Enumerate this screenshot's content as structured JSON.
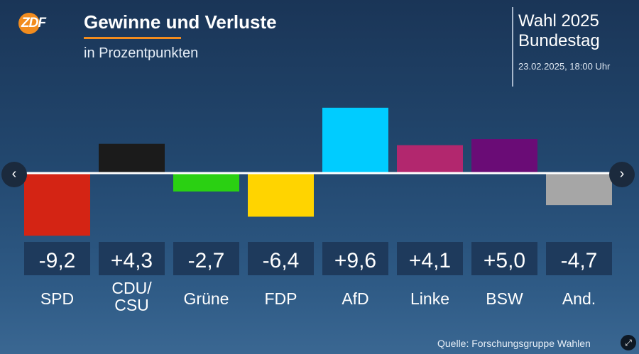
{
  "logo": {
    "text": "ZDF",
    "color": "#f28c1e"
  },
  "header": {
    "title": "Gewinne und Verluste",
    "subtitle": "in Prozentpunkten"
  },
  "election": {
    "title": "Wahl 2025",
    "subtitle": "Bundestag",
    "date": "23.02.2025, 18:00 Uhr"
  },
  "chart_data": {
    "type": "bar",
    "title": "Gewinne und Verluste",
    "subtitle": "in Prozentpunkten",
    "categories": [
      "SPD",
      "CDU/\nCSU",
      "Grüne",
      "FDP",
      "AfD",
      "Linke",
      "BSW",
      "And."
    ],
    "values": [
      -9.2,
      4.3,
      -2.7,
      -6.4,
      9.6,
      4.1,
      5.0,
      -4.7
    ],
    "value_labels": [
      "-9,2",
      "+4,3",
      "-2,7",
      "-6,4",
      "+9,6",
      "+4,1",
      "+5,0",
      "-4,7"
    ],
    "colors": [
      "#d42414",
      "#1b1b1b",
      "#2ad012",
      "#ffd400",
      "#00ccff",
      "#b2276e",
      "#6a0c76",
      "#a6a6a6"
    ],
    "xlabel": "",
    "ylabel": "",
    "grid": false
  },
  "nav": {
    "prev_icon": "chevron-left-icon",
    "next_icon": "chevron-right-icon"
  },
  "footer": {
    "source": "Quelle: Forschungsgruppe Wahlen",
    "expand_icon": "expand-icon"
  }
}
